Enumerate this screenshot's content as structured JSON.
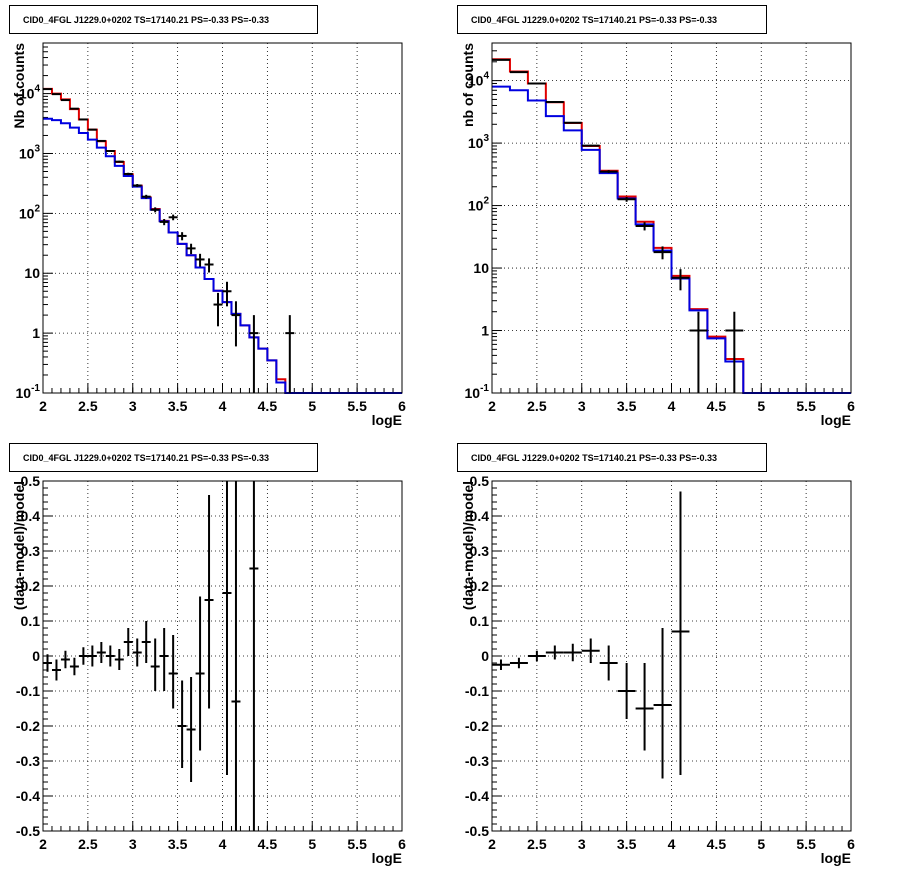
{
  "colors": {
    "data": "#000000",
    "red_model": "#e00000",
    "blue_model": "#0000e0",
    "grid": "#000000"
  },
  "chart_data": [
    {
      "type": "line",
      "title": "CID0_4FGL J1229.0+0202 TS=17140.21 PS=-0.33 PS=-0.33",
      "xlabel": "logE",
      "ylabel": "Nb of counts",
      "yscale": "log",
      "xlim": [
        2,
        6
      ],
      "ylim": [
        0.1,
        70000
      ],
      "xticks": [
        "2",
        "2.5",
        "3",
        "3.5",
        "4",
        "4.5",
        "5",
        "5.5",
        "6"
      ],
      "yticks": [
        "10^-1",
        "1",
        "10",
        "10^2",
        "10^3",
        "10^4"
      ],
      "grid": true,
      "bin_edges": [
        2.0,
        2.1,
        2.2,
        2.3,
        2.4,
        2.5,
        2.6,
        2.7,
        2.8,
        2.9,
        3.0,
        3.1,
        3.2,
        3.3,
        3.4,
        3.5,
        3.6,
        3.7,
        3.8,
        3.9,
        4.0,
        4.1,
        4.2,
        4.3,
        4.4,
        4.5,
        4.6,
        4.7,
        4.8,
        4.9,
        5.0,
        5.1,
        5.2,
        5.3,
        5.4,
        5.5,
        5.6,
        5.7,
        5.8,
        5.9,
        6.0
      ],
      "series": [
        {
          "color": "red",
          "values": [
            12000,
            10000,
            8000,
            5500,
            3700,
            2500,
            1600,
            1100,
            720,
            450,
            290,
            185,
            118,
            75,
            48,
            31,
            20,
            12.5,
            8,
            5.1,
            3.3,
            2.1,
            1.35,
            0.85,
            0.55,
            0.35,
            0.17,
            0.1,
            0.1,
            0.1,
            0.1,
            0.1,
            0.1,
            0.1,
            0.1,
            0.1,
            0.1,
            0.1,
            0.1,
            0.1
          ]
        },
        {
          "color": "blue",
          "values": [
            3800,
            3600,
            3200,
            2700,
            2200,
            1700,
            1250,
            900,
            620,
            420,
            280,
            180,
            115,
            74,
            48,
            31,
            20,
            12.5,
            8,
            5.1,
            3.3,
            2.1,
            1.35,
            0.85,
            0.55,
            0.35,
            0.15,
            0.1,
            0.1,
            0.1,
            0.1,
            0.1,
            0.1,
            0.1,
            0.1,
            0.1,
            0.1,
            0.1,
            0.1,
            0.1
          ]
        }
      ],
      "points": [
        {
          "x": 2.05,
          "y": 11900,
          "xerr": 0.05,
          "ylo": 11800,
          "yhi": 12000
        },
        {
          "x": 2.15,
          "y": 9800,
          "xerr": 0.05,
          "ylo": 9700,
          "yhi": 9900
        },
        {
          "x": 2.25,
          "y": 7800,
          "xerr": 0.05,
          "ylo": 7710,
          "yhi": 7890
        },
        {
          "x": 2.35,
          "y": 5600,
          "xerr": 0.05,
          "ylo": 5525,
          "yhi": 5675
        },
        {
          "x": 2.45,
          "y": 3700,
          "xerr": 0.05,
          "ylo": 3640,
          "yhi": 3760
        },
        {
          "x": 2.55,
          "y": 2500,
          "xerr": 0.05,
          "ylo": 2450,
          "yhi": 2550
        },
        {
          "x": 2.65,
          "y": 1620,
          "xerr": 0.05,
          "ylo": 1580,
          "yhi": 1660
        },
        {
          "x": 2.75,
          "y": 1100,
          "xerr": 0.05,
          "ylo": 1067,
          "yhi": 1133
        },
        {
          "x": 2.85,
          "y": 730,
          "xerr": 0.05,
          "ylo": 703,
          "yhi": 757
        },
        {
          "x": 2.95,
          "y": 455,
          "xerr": 0.05,
          "ylo": 434,
          "yhi": 476
        },
        {
          "x": 3.05,
          "y": 292,
          "xerr": 0.05,
          "ylo": 275,
          "yhi": 309
        },
        {
          "x": 3.15,
          "y": 190,
          "xerr": 0.05,
          "ylo": 176,
          "yhi": 204
        },
        {
          "x": 3.25,
          "y": 115,
          "xerr": 0.05,
          "ylo": 104,
          "yhi": 126
        },
        {
          "x": 3.35,
          "y": 72,
          "xerr": 0.05,
          "ylo": 63.5,
          "yhi": 80.5
        },
        {
          "x": 3.45,
          "y": 86,
          "xerr": 0.05,
          "ylo": 76.7,
          "yhi": 95.3
        },
        {
          "x": 3.55,
          "y": 42,
          "xerr": 0.05,
          "ylo": 35.5,
          "yhi": 48.5
        },
        {
          "x": 3.65,
          "y": 26,
          "xerr": 0.05,
          "ylo": 20.9,
          "yhi": 31.1
        },
        {
          "x": 3.75,
          "y": 17,
          "xerr": 0.05,
          "ylo": 12.9,
          "yhi": 21.1
        },
        {
          "x": 3.85,
          "y": 14,
          "xerr": 0.05,
          "ylo": 10.3,
          "yhi": 17.7
        },
        {
          "x": 3.95,
          "y": 3,
          "xerr": 0.05,
          "ylo": 1.3,
          "yhi": 4.7
        },
        {
          "x": 4.05,
          "y": 5,
          "xerr": 0.05,
          "ylo": 2.8,
          "yhi": 7.2
        },
        {
          "x": 4.15,
          "y": 2,
          "xerr": 0.05,
          "ylo": 0.6,
          "yhi": 3.4
        },
        {
          "x": 4.35,
          "y": 1,
          "xerr": 0.05,
          "ylo": 0.1,
          "yhi": 2
        },
        {
          "x": 4.75,
          "y": 1,
          "xerr": 0.05,
          "ylo": 0.1,
          "yhi": 2
        }
      ]
    },
    {
      "type": "line",
      "title": "CID0_4FGL J1229.0+0202 TS=17140.21 PS=-0.33 PS=-0.33",
      "xlabel": "logE",
      "ylabel": "nb of counts",
      "yscale": "log",
      "xlim": [
        2,
        6
      ],
      "ylim": [
        0.1,
        40000
      ],
      "xticks": [
        "2",
        "2.5",
        "3",
        "3.5",
        "4",
        "4.5",
        "5",
        "5.5",
        "6"
      ],
      "yticks": [
        "10^-1",
        "1",
        "10",
        "10^2",
        "10^3",
        "10^4"
      ],
      "grid": true,
      "bin_edges": [
        2.0,
        2.2,
        2.4,
        2.6,
        2.8,
        3.0,
        3.2,
        3.4,
        3.6,
        3.8,
        4.0,
        4.2,
        4.4,
        4.6,
        4.8,
        5.0,
        5.2,
        5.4,
        5.6,
        5.8,
        6.0
      ],
      "series": [
        {
          "color": "red",
          "values": [
            22000,
            14000,
            9000,
            4500,
            2100,
            900,
            360,
            140,
            55,
            21,
            7.5,
            2.2,
            0.8,
            0.35,
            0.1,
            0.1,
            0.1,
            0.1,
            0.1,
            0.1
          ]
        },
        {
          "color": "blue",
          "values": [
            8000,
            7000,
            4800,
            2700,
            1600,
            780,
            330,
            130,
            50,
            19,
            6.8,
            2.1,
            0.75,
            0.32,
            0.1,
            0.1,
            0.1,
            0.1,
            0.1,
            0.1
          ]
        }
      ],
      "points": [
        {
          "x": 2.1,
          "y": 21500,
          "xerr": 0.1,
          "ylo": 21300,
          "yhi": 21700
        },
        {
          "x": 2.3,
          "y": 13700,
          "xerr": 0.1,
          "ylo": 13500,
          "yhi": 13900
        },
        {
          "x": 2.5,
          "y": 9000,
          "xerr": 0.1,
          "ylo": 8900,
          "yhi": 9100
        },
        {
          "x": 2.7,
          "y": 4550,
          "xerr": 0.1,
          "ylo": 4480,
          "yhi": 4620
        },
        {
          "x": 2.9,
          "y": 2120,
          "xerr": 0.1,
          "ylo": 2070,
          "yhi": 2170
        },
        {
          "x": 3.1,
          "y": 910,
          "xerr": 0.1,
          "ylo": 880,
          "yhi": 940
        },
        {
          "x": 3.3,
          "y": 350,
          "xerr": 0.1,
          "ylo": 331,
          "yhi": 369
        },
        {
          "x": 3.5,
          "y": 126,
          "xerr": 0.1,
          "ylo": 115,
          "yhi": 137
        },
        {
          "x": 3.7,
          "y": 47,
          "xerr": 0.1,
          "ylo": 40,
          "yhi": 54
        },
        {
          "x": 3.9,
          "y": 18,
          "xerr": 0.1,
          "ylo": 13.8,
          "yhi": 22.2
        },
        {
          "x": 4.1,
          "y": 7,
          "xerr": 0.1,
          "ylo": 4.4,
          "yhi": 9.6
        },
        {
          "x": 4.3,
          "y": 1,
          "xerr": 0.1,
          "ylo": 0.1,
          "yhi": 2
        },
        {
          "x": 4.7,
          "y": 1,
          "xerr": 0.1,
          "ylo": 0.1,
          "yhi": 2
        }
      ]
    },
    {
      "type": "scatter",
      "title": "CID0_4FGL J1229.0+0202 TS=17140.21 PS=-0.33 PS=-0.33",
      "xlabel": "logE",
      "ylabel": "(data-model)/model",
      "xlim": [
        2,
        6
      ],
      "ylim": [
        -0.5,
        0.5
      ],
      "xticks": [
        "2",
        "2.5",
        "3",
        "3.5",
        "4",
        "4.5",
        "5",
        "5.5",
        "6"
      ],
      "yticks": [
        "-0.5",
        "-0.4",
        "-0.3",
        "-0.2",
        "-0.1",
        "0",
        "0.1",
        "0.2",
        "0.3",
        "0.4",
        "0.5"
      ],
      "grid": true,
      "points": [
        {
          "x": 2.05,
          "y": -0.02,
          "xerr": 0.05,
          "ylo": -0.045,
          "yhi": 0.005
        },
        {
          "x": 2.15,
          "y": -0.04,
          "xerr": 0.05,
          "ylo": -0.07,
          "yhi": -0.01
        },
        {
          "x": 2.25,
          "y": -0.01,
          "xerr": 0.05,
          "ylo": -0.035,
          "yhi": 0.015
        },
        {
          "x": 2.35,
          "y": -0.03,
          "xerr": 0.05,
          "ylo": -0.055,
          "yhi": -0.005
        },
        {
          "x": 2.45,
          "y": 0.0,
          "xerr": 0.05,
          "ylo": -0.025,
          "yhi": 0.025
        },
        {
          "x": 2.55,
          "y": 0.0,
          "xerr": 0.05,
          "ylo": -0.03,
          "yhi": 0.03
        },
        {
          "x": 2.65,
          "y": 0.01,
          "xerr": 0.05,
          "ylo": -0.02,
          "yhi": 0.04
        },
        {
          "x": 2.75,
          "y": 0.0,
          "xerr": 0.05,
          "ylo": -0.03,
          "yhi": 0.03
        },
        {
          "x": 2.85,
          "y": -0.01,
          "xerr": 0.05,
          "ylo": -0.04,
          "yhi": 0.02
        },
        {
          "x": 2.95,
          "y": 0.04,
          "xerr": 0.05,
          "ylo": 0.0,
          "yhi": 0.08
        },
        {
          "x": 3.05,
          "y": 0.01,
          "xerr": 0.05,
          "ylo": -0.03,
          "yhi": 0.05
        },
        {
          "x": 3.15,
          "y": 0.04,
          "xerr": 0.05,
          "ylo": -0.02,
          "yhi": 0.1
        },
        {
          "x": 3.25,
          "y": -0.03,
          "xerr": 0.05,
          "ylo": -0.1,
          "yhi": 0.05
        },
        {
          "x": 3.35,
          "y": 0.0,
          "xerr": 0.05,
          "ylo": -0.1,
          "yhi": 0.08
        },
        {
          "x": 3.45,
          "y": -0.05,
          "xerr": 0.05,
          "ylo": -0.15,
          "yhi": 0.06
        },
        {
          "x": 3.55,
          "y": -0.2,
          "xerr": 0.05,
          "ylo": -0.32,
          "yhi": -0.07
        },
        {
          "x": 3.65,
          "y": -0.21,
          "xerr": 0.05,
          "ylo": -0.36,
          "yhi": -0.06
        },
        {
          "x": 3.75,
          "y": -0.05,
          "xerr": 0.05,
          "ylo": -0.27,
          "yhi": 0.17
        },
        {
          "x": 3.85,
          "y": 0.16,
          "xerr": 0.05,
          "ylo": -0.15,
          "yhi": 0.46
        },
        {
          "x": 4.05,
          "y": 0.18,
          "xerr": 0.05,
          "ylo": -0.34,
          "yhi": 0.5
        },
        {
          "x": 4.15,
          "y": -0.13,
          "xerr": 0.05,
          "ylo": -0.5,
          "yhi": 0.5
        },
        {
          "x": 4.35,
          "y": 0.25,
          "xerr": 0.05,
          "ylo": -0.5,
          "yhi": 0.5
        }
      ]
    },
    {
      "type": "scatter",
      "title": "CID0_4FGL J1229.0+0202 TS=17140.21 PS=-0.33 PS=-0.33",
      "xlabel": "logE",
      "ylabel": "(data-model)/model",
      "xlim": [
        2,
        6
      ],
      "ylim": [
        -0.5,
        0.5
      ],
      "xticks": [
        "2",
        "2.5",
        "3",
        "3.5",
        "4",
        "4.5",
        "5",
        "5.5",
        "6"
      ],
      "yticks": [
        "-0.5",
        "-0.4",
        "-0.3",
        "-0.2",
        "-0.1",
        "0",
        "0.1",
        "0.2",
        "0.3",
        "0.4",
        "0.5"
      ],
      "grid": true,
      "points": [
        {
          "x": 2.1,
          "y": -0.025,
          "xerr": 0.1,
          "ylo": -0.04,
          "yhi": -0.01
        },
        {
          "x": 2.3,
          "y": -0.02,
          "xerr": 0.1,
          "ylo": -0.035,
          "yhi": -0.005
        },
        {
          "x": 2.5,
          "y": 0.0,
          "xerr": 0.1,
          "ylo": -0.015,
          "yhi": 0.015
        },
        {
          "x": 2.7,
          "y": 0.01,
          "xerr": 0.1,
          "ylo": -0.01,
          "yhi": 0.03
        },
        {
          "x": 2.9,
          "y": 0.01,
          "xerr": 0.1,
          "ylo": -0.015,
          "yhi": 0.035
        },
        {
          "x": 3.1,
          "y": 0.015,
          "xerr": 0.1,
          "ylo": -0.02,
          "yhi": 0.05
        },
        {
          "x": 3.3,
          "y": -0.02,
          "xerr": 0.1,
          "ylo": -0.07,
          "yhi": 0.03
        },
        {
          "x": 3.5,
          "y": -0.1,
          "xerr": 0.1,
          "ylo": -0.18,
          "yhi": -0.02
        },
        {
          "x": 3.7,
          "y": -0.15,
          "xerr": 0.1,
          "ylo": -0.27,
          "yhi": -0.02
        },
        {
          "x": 3.9,
          "y": -0.14,
          "xerr": 0.1,
          "ylo": -0.35,
          "yhi": 0.08
        },
        {
          "x": 4.1,
          "y": 0.07,
          "xerr": 0.1,
          "ylo": -0.34,
          "yhi": 0.47
        }
      ]
    }
  ]
}
